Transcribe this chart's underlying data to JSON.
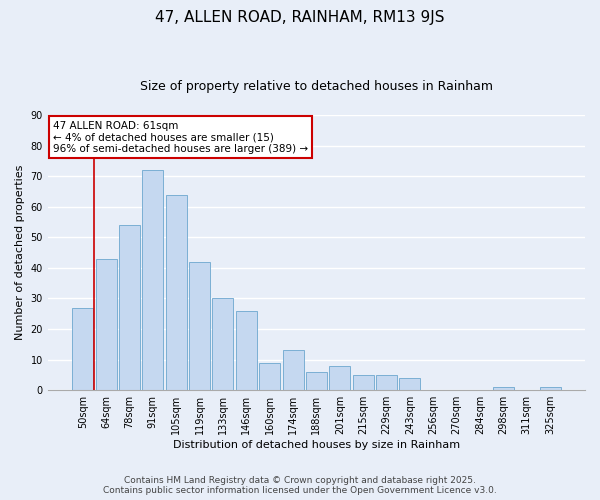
{
  "title": "47, ALLEN ROAD, RAINHAM, RM13 9JS",
  "subtitle": "Size of property relative to detached houses in Rainham",
  "xlabel": "Distribution of detached houses by size in Rainham",
  "ylabel": "Number of detached properties",
  "categories": [
    "50sqm",
    "64sqm",
    "78sqm",
    "91sqm",
    "105sqm",
    "119sqm",
    "133sqm",
    "146sqm",
    "160sqm",
    "174sqm",
    "188sqm",
    "201sqm",
    "215sqm",
    "229sqm",
    "243sqm",
    "256sqm",
    "270sqm",
    "284sqm",
    "298sqm",
    "311sqm",
    "325sqm"
  ],
  "values": [
    27,
    43,
    54,
    72,
    64,
    42,
    30,
    26,
    9,
    13,
    6,
    8,
    5,
    5,
    4,
    0,
    0,
    0,
    1,
    0,
    1
  ],
  "bar_color": "#c5d8f0",
  "bar_edge_color": "#7bafd4",
  "background_color": "#e8eef8",
  "grid_color": "#ffffff",
  "annotation_box_text": "47 ALLEN ROAD: 61sqm\n← 4% of detached houses are smaller (15)\n96% of semi-detached houses are larger (389) →",
  "annotation_box_color": "#cc0000",
  "ylim": [
    0,
    90
  ],
  "yticks": [
    0,
    10,
    20,
    30,
    40,
    50,
    60,
    70,
    80,
    90
  ],
  "footer_line1": "Contains HM Land Registry data © Crown copyright and database right 2025.",
  "footer_line2": "Contains public sector information licensed under the Open Government Licence v3.0.",
  "title_fontsize": 11,
  "subtitle_fontsize": 9,
  "axis_label_fontsize": 8,
  "tick_fontsize": 7,
  "footer_fontsize": 6.5,
  "annotation_fontsize": 7.5
}
